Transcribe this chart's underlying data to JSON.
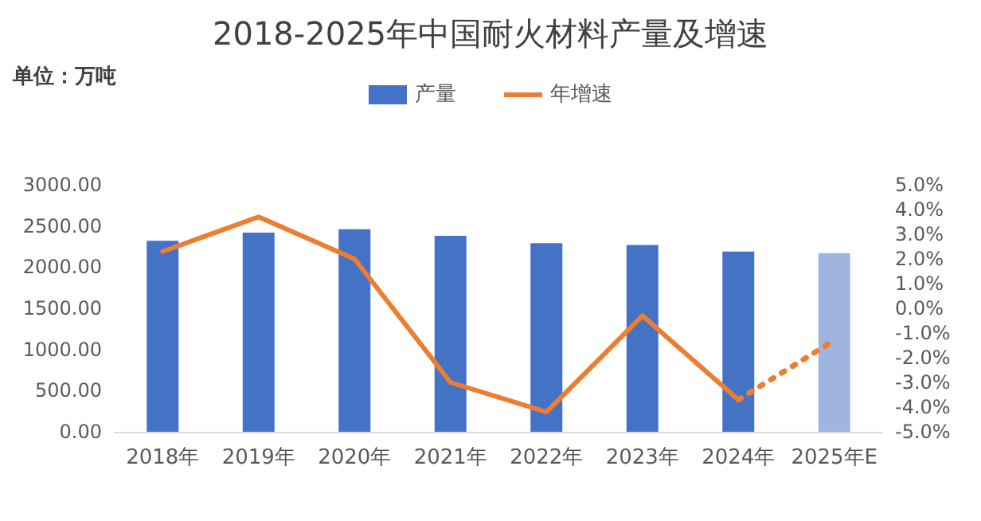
{
  "chart_data": {
    "type": "bar",
    "title": "2018-2025年中国耐火材料产量及增速",
    "annotations": [
      "单位：万吨"
    ],
    "categories": [
      "2018年",
      "2019年",
      "2020年",
      "2021年",
      "2022年",
      "2023年",
      "2024年",
      "2025年E"
    ],
    "series": [
      {
        "name": "产量",
        "color": "#4472c4",
        "colors": [
          "#4472c4",
          "#4472c4",
          "#4472c4",
          "#4472c4",
          "#4472c4",
          "#4472c4",
          "#4472c4",
          "#9fb4df"
        ],
        "values": [
          2320,
          2420,
          2460,
          2380,
          2290,
          2270,
          2190,
          2170
        ]
      },
      {
        "name": "年增速",
        "type": "line",
        "axis": "y2",
        "color": "#ed7d31",
        "line_style": "solid",
        "values": [
          2.3,
          3.7,
          2.0,
          -3.0,
          -4.2,
          -0.3,
          -3.7,
          null
        ]
      },
      {
        "type": "line",
        "axis": "y2",
        "color": "#ed7d31",
        "line_style": "dotted",
        "values": [
          null,
          null,
          null,
          null,
          null,
          null,
          -3.7,
          -1.3
        ]
      }
    ],
    "ylim": [
      0,
      3000
    ],
    "yticks": [
      {
        "value": 0,
        "label": "0.00"
      },
      {
        "value": 500,
        "label": "500.00"
      },
      {
        "value": 1000,
        "label": "1000.00"
      },
      {
        "value": 1500,
        "label": "1500.00"
      },
      {
        "value": 2000,
        "label": "2000.00"
      },
      {
        "value": 2500,
        "label": "2500.00"
      },
      {
        "value": 3000,
        "label": "3000.00"
      }
    ],
    "y2lim": [
      -5,
      5
    ],
    "y2ticks": [
      {
        "value": -5,
        "label": "-5.0%"
      },
      {
        "value": -4,
        "label": "-4.0%"
      },
      {
        "value": -3,
        "label": "-3.0%"
      },
      {
        "value": -2,
        "label": "-2.0%"
      },
      {
        "value": -1,
        "label": "-1.0%"
      },
      {
        "value": 0,
        "label": "0.0%"
      },
      {
        "value": 1,
        "label": "1.0%"
      },
      {
        "value": 2,
        "label": "2.0%"
      },
      {
        "value": 3,
        "label": "3.0%"
      },
      {
        "value": 4,
        "label": "4.0%"
      },
      {
        "value": 5,
        "label": "5.0%"
      }
    ],
    "grid": false,
    "legend": "top",
    "marker": "none"
  }
}
